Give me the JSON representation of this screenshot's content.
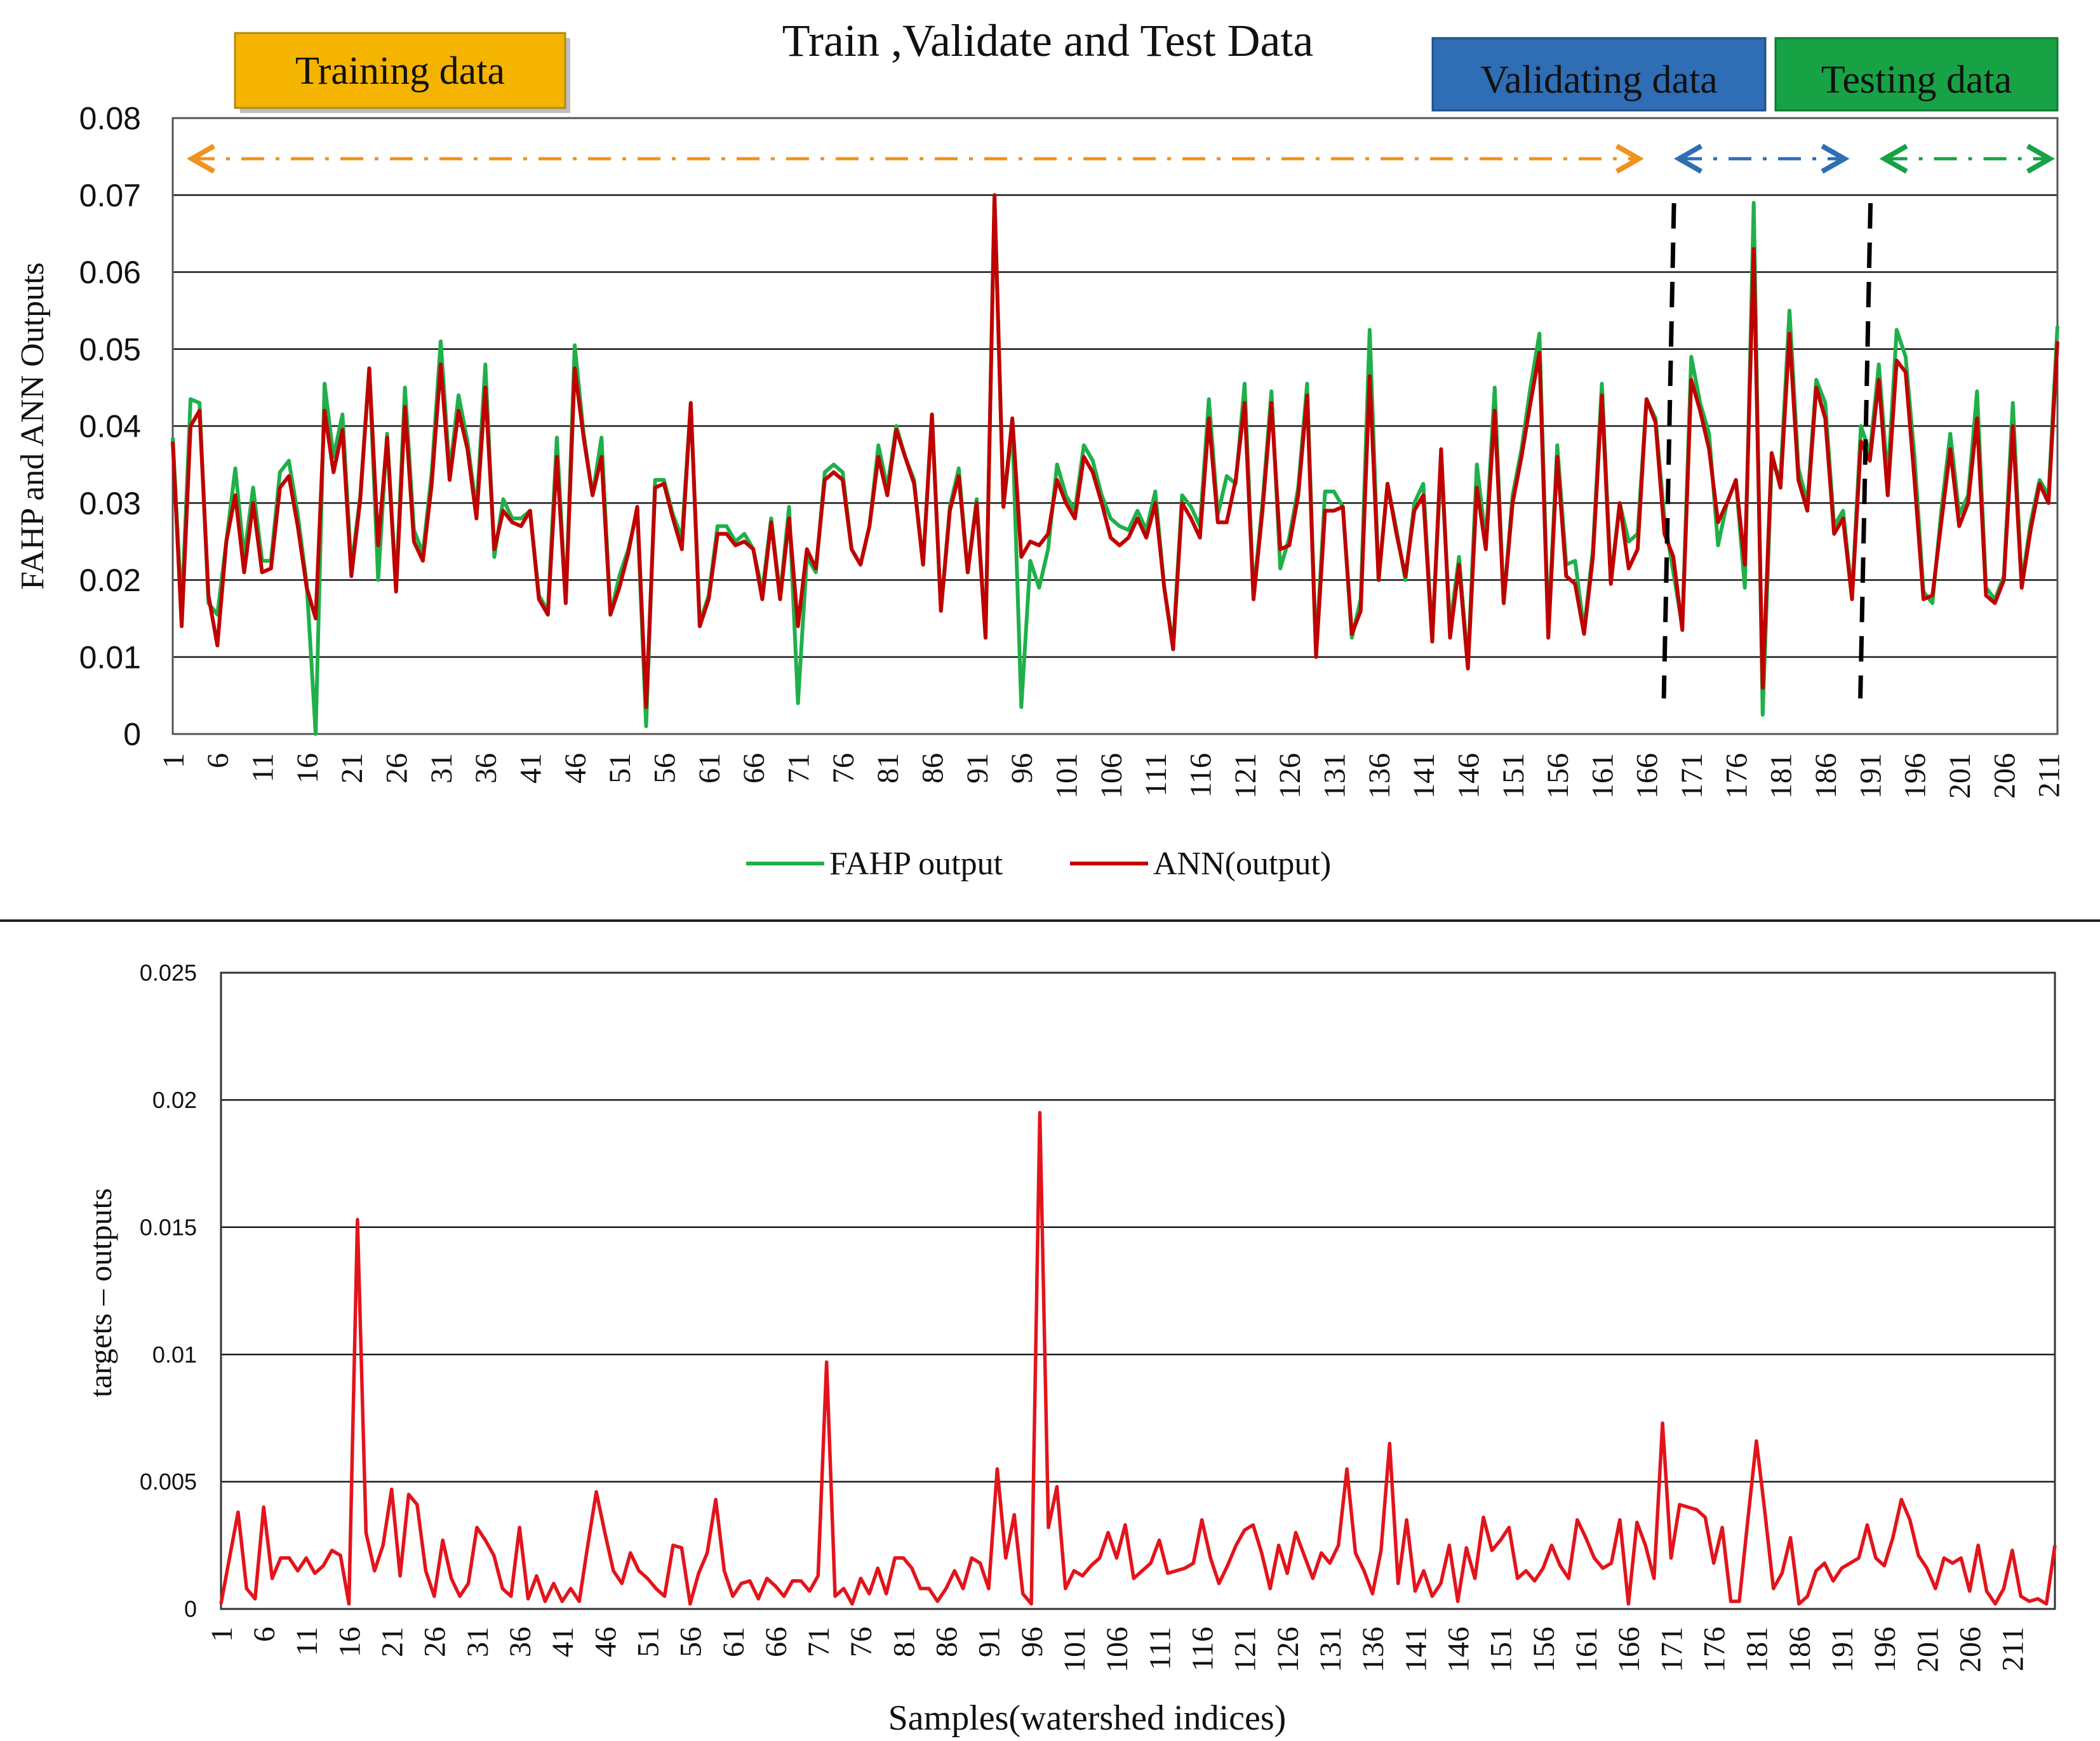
{
  "chart_data": [
    {
      "type": "line",
      "title": "Train ,Validate and Test Data",
      "xlabel": "",
      "ylabel": "FAHP  and ANN Outputs",
      "ylim": [
        0,
        0.08
      ],
      "yticks": [
        "0",
        "0.01",
        "0.02",
        "0.03",
        "0.04",
        "0.05",
        "0.06",
        "0.07",
        "0.08"
      ],
      "xticks": [
        "1",
        "6",
        "11",
        "16",
        "21",
        "26",
        "31",
        "36",
        "41",
        "46",
        "51",
        "56",
        "61",
        "66",
        "71",
        "76",
        "81",
        "86",
        "91",
        "96",
        "101",
        "106",
        "111",
        "116",
        "121",
        "126",
        "131",
        "136",
        "141",
        "146",
        "151",
        "156",
        "161",
        "166",
        "171",
        "176",
        "181",
        "186",
        "191",
        "196",
        "201",
        "206",
        "211"
      ],
      "grid": "horizontal",
      "legend": "bottom",
      "colors": {
        "fahp": "#1fb04a",
        "ann": "#c00000",
        "training": "#f4b400",
        "validating": "#2f6db5",
        "testing": "#17a245"
      },
      "regions": [
        {
          "label": "Training data",
          "start": 1,
          "end": 166
        },
        {
          "label": "Validating data",
          "start": 167,
          "end": 189
        },
        {
          "label": "Testing data",
          "start": 190,
          "end": 212
        }
      ],
      "dividers": [
        168.5,
        190.5
      ],
      "series": [
        {
          "name": "FAHP output",
          "values": [
            0.0385,
            0.016,
            0.0435,
            0.043,
            0.017,
            0.0155,
            0.025,
            0.0345,
            0.023,
            0.032,
            0.0225,
            0.0225,
            0.034,
            0.0355,
            0.0285,
            0.0195,
            0.0,
            0.0455,
            0.036,
            0.0415,
            0.0215,
            0.031,
            0.0475,
            0.02,
            0.039,
            0.019,
            0.045,
            0.0265,
            0.0235,
            0.034,
            0.051,
            0.034,
            0.044,
            0.038,
            0.029,
            0.048,
            0.023,
            0.0305,
            0.028,
            0.028,
            0.029,
            0.018,
            0.016,
            0.0385,
            0.017,
            0.0505,
            0.039,
            0.031,
            0.0385,
            0.0155,
            0.0205,
            0.024,
            0.029,
            0.001,
            0.033,
            0.033,
            0.0285,
            0.0255,
            0.043,
            0.0145,
            0.018,
            0.027,
            0.027,
            0.025,
            0.026,
            0.024,
            0.0185,
            0.028,
            0.018,
            0.0295,
            0.004,
            0.023,
            0.021,
            0.034,
            0.035,
            0.034,
            0.024,
            0.022,
            0.027,
            0.0375,
            0.032,
            0.04,
            0.036,
            0.033,
            0.022,
            0.0415,
            0.016,
            0.0295,
            0.0345,
            0.021,
            0.0305,
            0.0125,
            0.07,
            0.0295,
            0.04,
            0.0035,
            0.0225,
            0.019,
            0.024,
            0.035,
            0.031,
            0.029,
            0.0375,
            0.0355,
            0.031,
            0.028,
            0.027,
            0.0265,
            0.029,
            0.0265,
            0.0315,
            0.019,
            0.0115,
            0.031,
            0.0295,
            0.027,
            0.0435,
            0.0285,
            0.0335,
            0.0325,
            0.0455,
            0.018,
            0.03,
            0.0445,
            0.0215,
            0.0255,
            0.032,
            0.0455,
            0.0105,
            0.0315,
            0.0315,
            0.0295,
            0.0125,
            0.0175,
            0.0525,
            0.02,
            0.0325,
            0.0265,
            0.02,
            0.03,
            0.0325,
            0.0125,
            0.0355,
            0.014,
            0.023,
            0.009,
            0.035,
            0.025,
            0.045,
            0.017,
            0.031,
            0.037,
            0.045,
            0.052,
            0.0135,
            0.0375,
            0.022,
            0.0225,
            0.0135,
            0.024,
            0.0455,
            0.02,
            0.03,
            0.025,
            0.026,
            0.0435,
            0.041,
            0.028,
            0.021,
            0.014,
            0.049,
            0.043,
            0.039,
            0.0245,
            0.03,
            0.033,
            0.019,
            0.069,
            0.0025,
            0.035,
            0.0335,
            0.055,
            0.0345,
            0.03,
            0.046,
            0.043,
            0.027,
            0.029,
            0.018,
            0.04,
            0.0365,
            0.048,
            0.033,
            0.0525,
            0.049,
            0.036,
            0.0185,
            0.017,
            0.029,
            0.039,
            0.0285,
            0.031,
            0.0445,
            0.019,
            0.0175,
            0.0205,
            0.043,
            0.0195,
            0.0275,
            0.033,
            0.031,
            0.053
          ]
        },
        {
          "name": "ANN(output)",
          "values": [
            0.038,
            0.014,
            0.04,
            0.042,
            0.018,
            0.0115,
            0.025,
            0.031,
            0.021,
            0.03,
            0.021,
            0.0215,
            0.032,
            0.0335,
            0.027,
            0.019,
            0.015,
            0.042,
            0.034,
            0.0395,
            0.0205,
            0.0305,
            0.0475,
            0.0245,
            0.0385,
            0.0185,
            0.0425,
            0.025,
            0.0225,
            0.0325,
            0.048,
            0.033,
            0.042,
            0.037,
            0.028,
            0.045,
            0.024,
            0.029,
            0.0275,
            0.027,
            0.029,
            0.0175,
            0.0155,
            0.036,
            0.017,
            0.0475,
            0.0385,
            0.031,
            0.036,
            0.0155,
            0.019,
            0.0235,
            0.0295,
            0.0035,
            0.032,
            0.0325,
            0.028,
            0.024,
            0.043,
            0.014,
            0.0175,
            0.026,
            0.026,
            0.0245,
            0.025,
            0.024,
            0.0175,
            0.0275,
            0.0175,
            0.028,
            0.014,
            0.024,
            0.0215,
            0.033,
            0.034,
            0.033,
            0.024,
            0.022,
            0.027,
            0.036,
            0.031,
            0.0395,
            0.036,
            0.0325,
            0.022,
            0.0415,
            0.016,
            0.029,
            0.0335,
            0.021,
            0.03,
            0.0125,
            0.07,
            0.0295,
            0.041,
            0.023,
            0.025,
            0.0245,
            0.026,
            0.033,
            0.03,
            0.028,
            0.036,
            0.034,
            0.03,
            0.0255,
            0.0245,
            0.0255,
            0.028,
            0.0255,
            0.03,
            0.019,
            0.011,
            0.03,
            0.028,
            0.0255,
            0.041,
            0.0275,
            0.0275,
            0.033,
            0.043,
            0.0175,
            0.029,
            0.043,
            0.024,
            0.0245,
            0.031,
            0.044,
            0.01,
            0.029,
            0.029,
            0.0295,
            0.013,
            0.016,
            0.0465,
            0.02,
            0.0325,
            0.026,
            0.0205,
            0.029,
            0.031,
            0.012,
            0.037,
            0.0125,
            0.022,
            0.0085,
            0.032,
            0.024,
            0.042,
            0.017,
            0.03,
            0.036,
            0.043,
            0.0495,
            0.0125,
            0.036,
            0.0205,
            0.0195,
            0.013,
            0.023,
            0.044,
            0.0195,
            0.03,
            0.0215,
            0.024,
            0.0435,
            0.0405,
            0.026,
            0.023,
            0.0135,
            0.046,
            0.042,
            0.037,
            0.0275,
            0.03,
            0.033,
            0.022,
            0.063,
            0.006,
            0.0365,
            0.032,
            0.052,
            0.033,
            0.029,
            0.045,
            0.041,
            0.026,
            0.028,
            0.0175,
            0.038,
            0.0355,
            0.046,
            0.031,
            0.0485,
            0.047,
            0.033,
            0.0175,
            0.018,
            0.0275,
            0.037,
            0.027,
            0.03,
            0.041,
            0.018,
            0.017,
            0.02,
            0.04,
            0.019,
            0.0265,
            0.0325,
            0.03,
            0.051
          ]
        }
      ]
    },
    {
      "type": "line",
      "title": "",
      "xlabel": "Samples(watershed indices)",
      "ylabel": "targets – outputs",
      "ylim": [
        0,
        0.025
      ],
      "yticks": [
        "0",
        "0.005",
        "0.01",
        "0.015",
        "0.02",
        "0.025"
      ],
      "xticks": [
        "1",
        "6",
        "11",
        "16",
        "21",
        "26",
        "31",
        "36",
        "41",
        "46",
        "51",
        "56",
        "61",
        "66",
        "71",
        "76",
        "81",
        "86",
        "91",
        "96",
        "101",
        "106",
        "111",
        "116",
        "121",
        "126",
        "131",
        "136",
        "141",
        "146",
        "151",
        "156",
        "161",
        "166",
        "171",
        "176",
        "181",
        "186",
        "191",
        "196",
        "201",
        "206",
        "211"
      ],
      "grid": "horizontal",
      "colors": {
        "error": "#e3141b"
      },
      "series": [
        {
          "name": "",
          "values": [
            0.0002,
            0.002,
            0.0038,
            0.0008,
            0.0004,
            0.004,
            0.0012,
            0.002,
            0.002,
            0.0015,
            0.002,
            0.0014,
            0.0017,
            0.0023,
            0.0021,
            0.0002,
            0.0153,
            0.003,
            0.0015,
            0.0025,
            0.0047,
            0.0013,
            0.0045,
            0.0041,
            0.0015,
            0.0005,
            0.0027,
            0.0012,
            0.0005,
            0.001,
            0.0032,
            0.0027,
            0.0021,
            0.0008,
            0.0005,
            0.0032,
            0.0004,
            0.0013,
            0.0003,
            0.001,
            0.0003,
            0.0008,
            0.0003,
            0.0025,
            0.0046,
            0.003,
            0.0015,
            0.001,
            0.0022,
            0.0015,
            0.0012,
            0.0008,
            0.0005,
            0.0025,
            0.0024,
            0.0002,
            0.0014,
            0.0022,
            0.0043,
            0.0015,
            0.0005,
            0.001,
            0.0011,
            0.0004,
            0.0012,
            0.0009,
            0.0005,
            0.0011,
            0.0011,
            0.0007,
            0.0013,
            0.0097,
            0.0005,
            0.0008,
            0.0002,
            0.0012,
            0.0006,
            0.0016,
            0.0006,
            0.002,
            0.002,
            0.0016,
            0.0008,
            0.0008,
            0.0003,
            0.0008,
            0.0015,
            0.0008,
            0.002,
            0.0018,
            0.0008,
            0.0055,
            0.002,
            0.0037,
            0.0006,
            0.0002,
            0.0195,
            0.0032,
            0.0048,
            0.0008,
            0.0015,
            0.0013,
            0.0017,
            0.002,
            0.003,
            0.002,
            0.0033,
            0.0012,
            0.0015,
            0.0018,
            0.0027,
            0.0014,
            0.0015,
            0.0016,
            0.0018,
            0.0035,
            0.002,
            0.001,
            0.0017,
            0.0025,
            0.0031,
            0.0033,
            0.0022,
            0.0008,
            0.0025,
            0.0014,
            0.003,
            0.0021,
            0.0012,
            0.0022,
            0.0018,
            0.0025,
            0.0055,
            0.0022,
            0.0015,
            0.0006,
            0.0023,
            0.0065,
            0.001,
            0.0035,
            0.0007,
            0.0015,
            0.0005,
            0.001,
            0.0025,
            0.0003,
            0.0024,
            0.0012,
            0.0036,
            0.0023,
            0.0027,
            0.0032,
            0.0012,
            0.0015,
            0.0011,
            0.0016,
            0.0025,
            0.0017,
            0.0012,
            0.0035,
            0.0028,
            0.002,
            0.0016,
            0.0018,
            0.0035,
            0.0002,
            0.0034,
            0.0025,
            0.0012,
            0.0073,
            0.002,
            0.0041,
            0.004,
            0.0039,
            0.0036,
            0.0018,
            0.0032,
            0.0003,
            0.0003,
            0.0035,
            0.0066,
            0.0038,
            0.0008,
            0.0014,
            0.0028,
            0.0002,
            0.0005,
            0.0015,
            0.0018,
            0.0011,
            0.0016,
            0.0018,
            0.002,
            0.0033,
            0.002,
            0.0017,
            0.0028,
            0.0043,
            0.0035,
            0.0021,
            0.0016,
            0.0008,
            0.002,
            0.0018,
            0.002,
            0.0007,
            0.0025,
            0.0007,
            0.0002,
            0.0008,
            0.0023,
            0.0005,
            0.0003,
            0.0004,
            0.0002,
            0.0025
          ]
        }
      ]
    }
  ]
}
